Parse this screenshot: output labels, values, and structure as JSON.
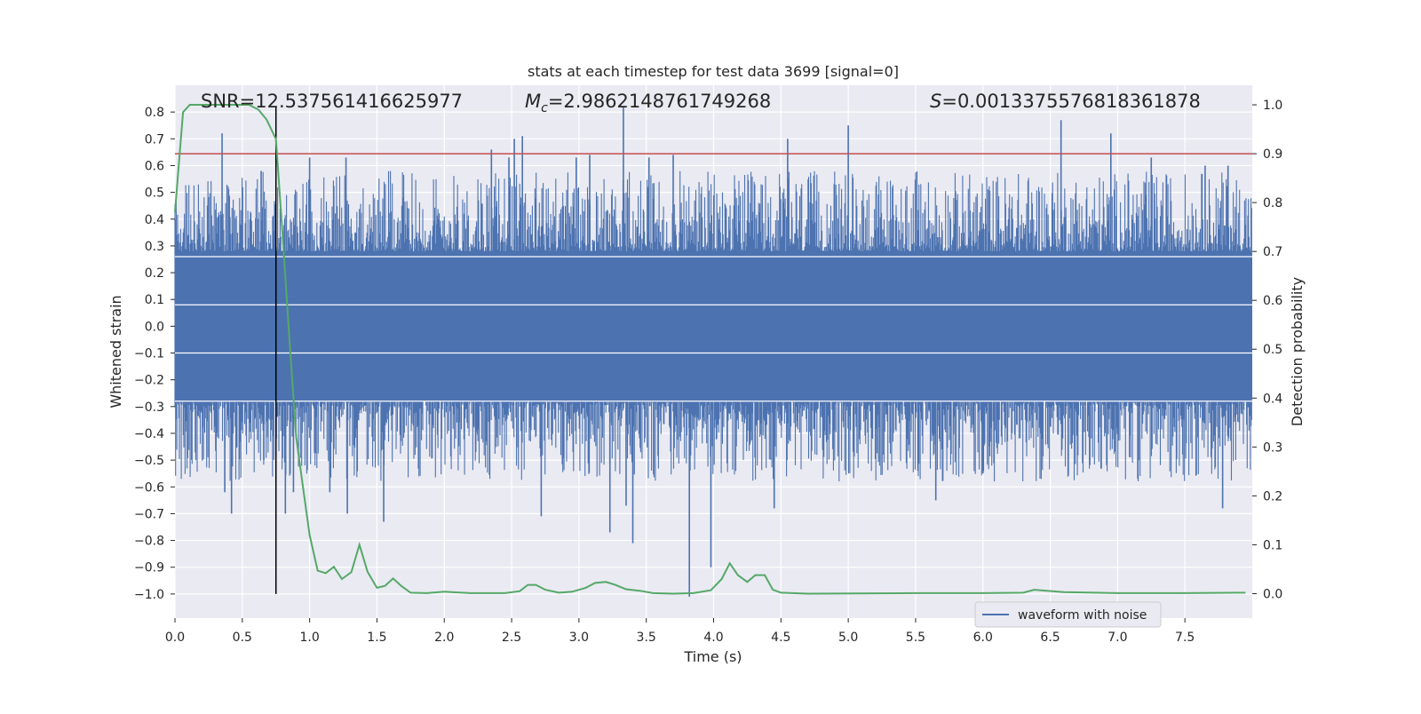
{
  "chart_data": {
    "type": "line",
    "title": "stats at each timestep for test data 3699 [signal=0]",
    "xlabel": "Time (s)",
    "ylabel": "Whitened strain",
    "ylabel_right": "Detection probability",
    "xlim": [
      0.0,
      8.0
    ],
    "ylim": [
      -1.09,
      0.9
    ],
    "ylim_right": [
      -0.05,
      1.04
    ],
    "x_ticks": [
      0.0,
      0.5,
      1.0,
      1.5,
      2.0,
      2.5,
      3.0,
      3.5,
      4.0,
      4.5,
      5.0,
      5.5,
      6.0,
      6.5,
      7.0,
      7.5
    ],
    "x_tick_labels": [
      "0.0",
      "0.5",
      "1.0",
      "1.5",
      "2.0",
      "2.5",
      "3.0",
      "3.5",
      "4.0",
      "4.5",
      "5.0",
      "5.5",
      "6.0",
      "6.5",
      "7.0",
      "7.5"
    ],
    "y_ticks": [
      0.8,
      0.7,
      0.6,
      0.5,
      0.4,
      0.3,
      0.2,
      0.1,
      0.0,
      -0.1,
      -0.2,
      -0.3,
      -0.4,
      -0.5,
      -0.6,
      -0.7,
      -0.8,
      -0.9,
      -1.0
    ],
    "y_tick_labels": [
      "0.8",
      "0.7",
      "0.6",
      "0.5",
      "0.4",
      "0.3",
      "0.2",
      "0.1",
      "0.0",
      "−0.1",
      "−0.2",
      "−0.3",
      "−0.4",
      "−0.5",
      "−0.6",
      "−0.7",
      "−0.8",
      "−0.9",
      "−1.0"
    ],
    "y_right_ticks": [
      1.0,
      0.9,
      0.8,
      0.7,
      0.6,
      0.5,
      0.4,
      0.3,
      0.2,
      0.1,
      0.0
    ],
    "y_right_tick_labels": [
      "1.0",
      "0.9",
      "0.8",
      "0.7",
      "0.6",
      "0.5",
      "0.4",
      "0.3",
      "0.2",
      "0.1",
      "0.0"
    ],
    "grid": true,
    "legend": {
      "label": "waveform with noise",
      "placement": "lower-right"
    },
    "annotations": {
      "snr_label": "SNR",
      "snr_value": "=12.537561416625977",
      "mc_symbol": "M",
      "mc_subscript": "c",
      "mc_value": "=2.9862148761749268",
      "s_symbol": "S",
      "s_value": "=0.0013375576818361878"
    },
    "threshold_probability": 0.9,
    "marker_time": 0.75,
    "waveform": {
      "name": "waveform with noise",
      "color": "#4c72b0",
      "duration_s": 8.0,
      "core_amplitude": 0.27,
      "peak_points": [
        {
          "t": 0.35,
          "v": 0.72
        },
        {
          "t": 0.37,
          "v": -0.62
        },
        {
          "t": 0.42,
          "v": -0.7
        },
        {
          "t": 0.64,
          "v": 0.58
        },
        {
          "t": 0.66,
          "v": -0.5
        },
        {
          "t": 0.82,
          "v": -0.7
        },
        {
          "t": 0.88,
          "v": -0.62
        },
        {
          "t": 1.0,
          "v": 0.63
        },
        {
          "t": 1.15,
          "v": -0.62
        },
        {
          "t": 1.27,
          "v": 0.63
        },
        {
          "t": 1.28,
          "v": -0.7
        },
        {
          "t": 1.55,
          "v": -0.73
        },
        {
          "t": 2.35,
          "v": 0.66
        },
        {
          "t": 2.48,
          "v": 0.63
        },
        {
          "t": 2.52,
          "v": 0.7
        },
        {
          "t": 2.58,
          "v": 0.71
        },
        {
          "t": 2.72,
          "v": -0.71
        },
        {
          "t": 2.98,
          "v": 0.63
        },
        {
          "t": 3.08,
          "v": 0.64
        },
        {
          "t": 3.23,
          "v": -0.77
        },
        {
          "t": 3.33,
          "v": 0.82
        },
        {
          "t": 3.35,
          "v": -0.67
        },
        {
          "t": 3.4,
          "v": -0.81
        },
        {
          "t": 3.52,
          "v": 0.63
        },
        {
          "t": 3.7,
          "v": 0.64
        },
        {
          "t": 3.82,
          "v": -1.01
        },
        {
          "t": 3.98,
          "v": -0.9
        },
        {
          "t": 4.45,
          "v": -0.68
        },
        {
          "t": 4.55,
          "v": 0.7
        },
        {
          "t": 5.0,
          "v": 0.75
        },
        {
          "t": 5.65,
          "v": -0.65
        },
        {
          "t": 6.0,
          "v": -0.55
        },
        {
          "t": 6.58,
          "v": 0.77
        },
        {
          "t": 6.95,
          "v": 0.72
        },
        {
          "t": 7.25,
          "v": 0.63
        },
        {
          "t": 7.65,
          "v": 0.6
        },
        {
          "t": 7.78,
          "v": -0.68
        },
        {
          "t": 7.82,
          "v": 0.6
        }
      ]
    },
    "detection_probability": {
      "color": "#55a868",
      "t": [
        0.0,
        0.06,
        0.11,
        0.2,
        0.55,
        0.62,
        0.68,
        0.75,
        0.8,
        0.85,
        0.9,
        0.95,
        1.0,
        1.06,
        1.12,
        1.18,
        1.24,
        1.31,
        1.37,
        1.43,
        1.5,
        1.56,
        1.62,
        1.68,
        1.75,
        1.87,
        2.0,
        2.2,
        2.45,
        2.56,
        2.62,
        2.68,
        2.75,
        2.85,
        2.95,
        3.05,
        3.12,
        3.2,
        3.27,
        3.35,
        3.45,
        3.55,
        3.7,
        3.85,
        3.98,
        4.06,
        4.12,
        4.18,
        4.25,
        4.31,
        4.38,
        4.44,
        4.5,
        4.7,
        5.5,
        6.0,
        6.3,
        6.38,
        6.6,
        7.0,
        7.5,
        7.95
      ],
      "p": [
        0.78,
        0.985,
        1.0,
        1.0,
        1.0,
        0.99,
        0.97,
        0.93,
        0.73,
        0.52,
        0.32,
        0.22,
        0.12,
        0.047,
        0.042,
        0.055,
        0.03,
        0.044,
        0.1,
        0.045,
        0.012,
        0.016,
        0.031,
        0.016,
        0.002,
        0.001,
        0.004,
        0.001,
        0.001,
        0.005,
        0.018,
        0.018,
        0.008,
        0.002,
        0.004,
        0.012,
        0.022,
        0.024,
        0.018,
        0.009,
        0.006,
        0.001,
        0.0,
        0.001,
        0.007,
        0.03,
        0.062,
        0.038,
        0.024,
        0.038,
        0.038,
        0.008,
        0.002,
        0.0,
        0.001,
        0.001,
        0.002,
        0.008,
        0.003,
        0.001,
        0.001,
        0.002
      ]
    }
  }
}
